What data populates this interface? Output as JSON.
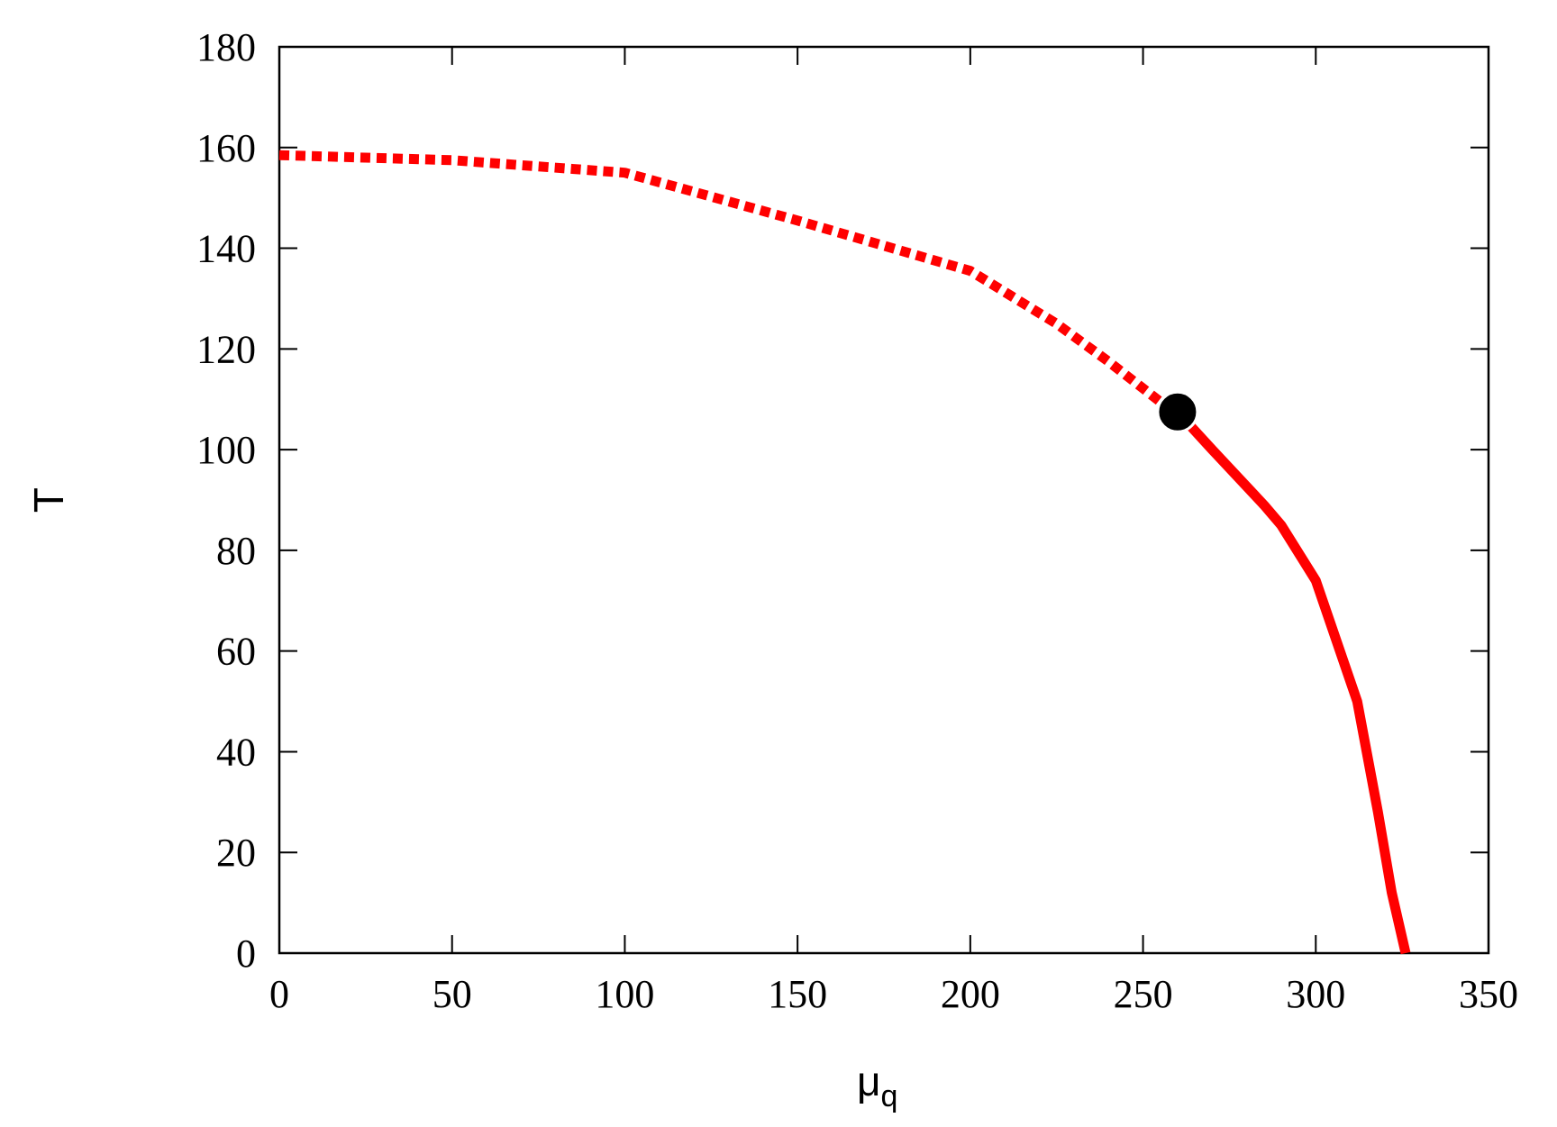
{
  "chart_data": {
    "type": "line",
    "xlabel": "μ",
    "xlabel_subscript": "q",
    "ylabel": "T",
    "xlim": [
      0,
      350
    ],
    "ylim": [
      0,
      180
    ],
    "x_ticks": [
      0,
      50,
      100,
      150,
      200,
      250,
      300,
      350
    ],
    "y_ticks": [
      0,
      20,
      40,
      60,
      80,
      100,
      120,
      140,
      160,
      180
    ],
    "grid": false,
    "legend": "none",
    "series": [
      {
        "style": "dashed",
        "color": "#ff0000",
        "x": [
          0,
          50,
          100,
          150,
          200,
          225,
          240,
          255,
          260
        ],
        "y": [
          158.5,
          157.5,
          155,
          145.5,
          135.5,
          125,
          117.5,
          109.5,
          107.5
        ]
      },
      {
        "style": "solid",
        "color": "#ff0000",
        "x": [
          260,
          270,
          285,
          290,
          300,
          312,
          318,
          322,
          326
        ],
        "y": [
          107.5,
          100,
          89,
          85,
          74,
          50,
          28,
          12,
          0
        ]
      }
    ],
    "markers": [
      {
        "x": 260,
        "y": 107.5,
        "shape": "filled-circle",
        "color": "#000000"
      }
    ]
  }
}
